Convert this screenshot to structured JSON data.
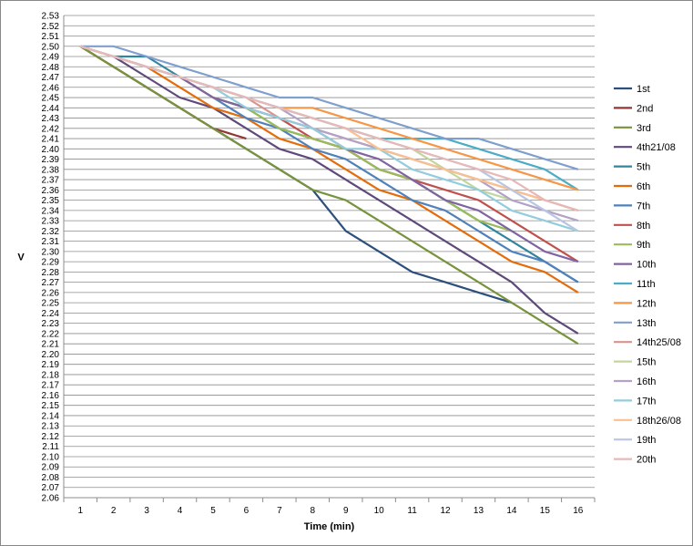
{
  "chart_data": {
    "type": "line",
    "xlabel": "Time (min)",
    "ylabel": "V",
    "x": [
      1,
      2,
      3,
      4,
      5,
      6,
      7,
      8,
      9,
      10,
      11,
      12,
      13,
      14,
      15,
      16
    ],
    "ylim": [
      2.06,
      2.53
    ],
    "ystep": 0.01,
    "grid": "horizontal",
    "legend_position": "right",
    "series": [
      {
        "name": "1st",
        "color": "#2c4f7c",
        "values": [
          2.5,
          2.48,
          2.46,
          2.44,
          2.42,
          2.4,
          2.38,
          2.36,
          2.32,
          2.3,
          2.28,
          2.27,
          2.26,
          2.25,
          null,
          null
        ]
      },
      {
        "name": "2nd",
        "color": "#943634",
        "values": [
          2.5,
          2.48,
          2.46,
          2.44,
          2.42,
          2.41,
          null,
          null,
          null,
          null,
          null,
          null,
          null,
          null,
          null,
          null
        ]
      },
      {
        "name": "3rd",
        "color": "#77933c",
        "values": [
          2.5,
          2.48,
          2.46,
          2.44,
          2.42,
          2.4,
          2.38,
          2.36,
          2.35,
          2.33,
          2.31,
          2.29,
          2.27,
          2.25,
          2.23,
          2.21
        ]
      },
      {
        "name": "4th21/08",
        "color": "#5f497a",
        "values": [
          2.5,
          2.49,
          2.47,
          2.45,
          2.44,
          2.42,
          2.4,
          2.39,
          2.37,
          2.35,
          2.33,
          2.31,
          2.29,
          2.27,
          2.24,
          2.22
        ]
      },
      {
        "name": "5th",
        "color": "#31859c",
        "values": [
          2.5,
          2.49,
          2.49,
          2.47,
          2.45,
          2.44,
          2.42,
          2.41,
          2.4,
          2.38,
          2.37,
          2.35,
          2.33,
          2.31,
          2.29,
          2.27
        ]
      },
      {
        "name": "6th",
        "color": "#e46c0a",
        "values": [
          2.5,
          2.49,
          2.48,
          2.46,
          2.44,
          2.43,
          2.41,
          2.4,
          2.38,
          2.36,
          2.35,
          2.33,
          2.31,
          2.29,
          2.28,
          2.26
        ]
      },
      {
        "name": "7th",
        "color": "#4f81bd",
        "values": [
          2.5,
          2.49,
          2.48,
          2.47,
          2.45,
          2.43,
          2.42,
          2.4,
          2.39,
          2.37,
          2.35,
          2.34,
          2.32,
          2.3,
          2.29,
          2.27
        ]
      },
      {
        "name": "8th",
        "color": "#c0504d",
        "values": [
          2.5,
          2.49,
          2.48,
          2.47,
          2.45,
          2.44,
          2.43,
          2.41,
          2.4,
          2.38,
          2.37,
          2.36,
          2.35,
          2.33,
          2.31,
          2.29
        ]
      },
      {
        "name": "9th",
        "color": "#9bbb59",
        "values": [
          2.5,
          2.49,
          2.48,
          2.47,
          2.45,
          2.44,
          2.42,
          2.41,
          2.4,
          2.38,
          2.37,
          2.35,
          2.33,
          2.32,
          null,
          null
        ]
      },
      {
        "name": "10th",
        "color": "#8064a2",
        "values": [
          2.5,
          2.49,
          2.48,
          2.47,
          2.45,
          2.44,
          2.43,
          2.42,
          2.4,
          2.39,
          2.37,
          2.35,
          2.34,
          2.32,
          2.3,
          2.29
        ]
      },
      {
        "name": "11th",
        "color": "#4bacc6",
        "values": [
          2.5,
          2.49,
          2.48,
          2.47,
          2.46,
          2.45,
          2.44,
          2.43,
          2.42,
          2.41,
          2.41,
          2.41,
          2.4,
          2.39,
          2.38,
          2.36
        ]
      },
      {
        "name": "12th",
        "color": "#f79646",
        "values": [
          2.5,
          2.49,
          2.48,
          2.47,
          2.46,
          2.45,
          2.44,
          2.44,
          2.43,
          2.42,
          2.41,
          2.4,
          2.39,
          2.38,
          2.37,
          2.36
        ]
      },
      {
        "name": "13th",
        "color": "#7f9fcf",
        "values": [
          2.5,
          2.5,
          2.49,
          2.48,
          2.47,
          2.46,
          2.45,
          2.45,
          2.44,
          2.43,
          2.42,
          2.41,
          2.41,
          2.4,
          2.39,
          2.38
        ]
      },
      {
        "name": "14th25/08",
        "color": "#d9928f",
        "values": [
          2.5,
          2.49,
          2.48,
          2.47,
          2.46,
          2.45,
          2.43,
          2.42,
          2.41,
          2.4,
          2.39,
          2.38,
          2.37,
          2.36,
          2.35,
          2.34
        ]
      },
      {
        "name": "15th",
        "color": "#c3d69b",
        "values": [
          2.5,
          2.49,
          2.48,
          2.47,
          2.46,
          2.45,
          2.44,
          2.43,
          2.42,
          2.41,
          2.4,
          2.38,
          2.36,
          2.35,
          null,
          null
        ]
      },
      {
        "name": "16th",
        "color": "#b2a2c7",
        "values": [
          2.5,
          2.49,
          2.48,
          2.47,
          2.46,
          2.45,
          2.44,
          2.42,
          2.41,
          2.4,
          2.39,
          2.38,
          2.37,
          2.35,
          2.34,
          2.33
        ]
      },
      {
        "name": "17th",
        "color": "#93cddd",
        "values": [
          2.5,
          2.49,
          2.48,
          2.47,
          2.46,
          2.44,
          2.43,
          2.42,
          2.4,
          2.4,
          2.38,
          2.37,
          2.36,
          2.34,
          2.33,
          2.32
        ]
      },
      {
        "name": "18th26/08",
        "color": "#fac090",
        "values": [
          2.5,
          2.49,
          2.48,
          2.47,
          2.46,
          2.45,
          2.44,
          2.43,
          2.42,
          2.4,
          2.39,
          2.38,
          2.37,
          2.36,
          2.35,
          2.34
        ]
      },
      {
        "name": "19th",
        "color": "#b9c6e2",
        "values": [
          2.5,
          2.49,
          2.48,
          2.47,
          2.46,
          2.45,
          2.44,
          2.43,
          2.42,
          2.41,
          2.4,
          2.39,
          2.38,
          2.36,
          2.34,
          2.32
        ]
      },
      {
        "name": "20th",
        "color": "#e6b9b8",
        "values": [
          2.5,
          2.49,
          2.48,
          2.47,
          2.46,
          2.45,
          2.44,
          2.43,
          2.42,
          2.41,
          2.4,
          2.39,
          2.38,
          2.37,
          2.35,
          2.34
        ]
      }
    ]
  }
}
